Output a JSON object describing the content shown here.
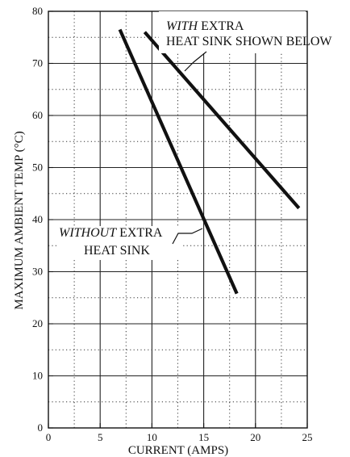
{
  "chart_data": {
    "type": "line",
    "title": "",
    "xlabel": "CURRENT (AMPS)",
    "ylabel": "MAXIMUM AMBIENT TEMP (°C)",
    "xlim": [
      0,
      25
    ],
    "ylim": [
      0,
      80
    ],
    "x_ticks": [
      "0",
      "5",
      "10",
      "15",
      "20",
      "25"
    ],
    "y_ticks": [
      "0",
      "10",
      "20",
      "30",
      "40",
      "50",
      "60",
      "70",
      "80"
    ],
    "grid": "dotted",
    "series": [
      {
        "points": [
          {
            "x": 9.3,
            "y": 76
          },
          {
            "x": 24.2,
            "y": 42.2
          }
        ]
      },
      {
        "points": [
          {
            "x": 6.9,
            "y": 76.5
          },
          {
            "x": 18.2,
            "y": 25.8
          }
        ]
      }
    ],
    "annotations": [
      {
        "lead": "WITH",
        "rest": " EXTRA",
        "line2": "HEAT SINK SHOWN BELOW"
      },
      {
        "lead": "WITHOUT",
        "rest": " EXTRA",
        "line2": "HEAT SINK"
      }
    ]
  }
}
